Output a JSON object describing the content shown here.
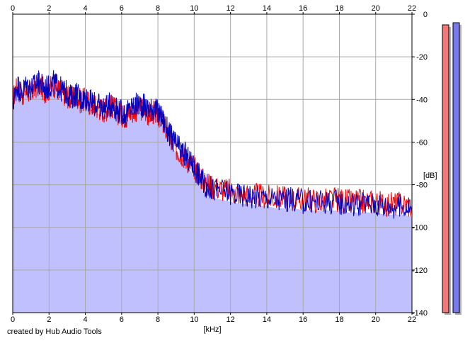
{
  "chart_data": {
    "type": "area",
    "xlabel": "[kHz]",
    "ylabel": "[dB]",
    "xlim": [
      0,
      22
    ],
    "ylim": [
      -140,
      0
    ],
    "x_ticks": [
      "0",
      "2",
      "4",
      "6",
      "8",
      "10",
      "12",
      "14",
      "16",
      "18",
      "20",
      "22"
    ],
    "y_ticks": [
      "0",
      "-20",
      "-40",
      "-60",
      "-80",
      "-100",
      "-120",
      "-140"
    ],
    "grid": true,
    "series": [
      {
        "color": "#ff0000",
        "x": [
          0,
          0.25,
          0.5,
          0.75,
          1,
          1.25,
          1.5,
          1.75,
          2,
          2.25,
          2.5,
          2.75,
          3,
          3.25,
          3.5,
          3.75,
          4,
          4.25,
          4.5,
          4.75,
          5,
          5.25,
          5.5,
          5.75,
          6,
          6.25,
          6.5,
          6.75,
          7,
          7.25,
          7.5,
          7.75,
          8,
          8.25,
          8.5,
          8.75,
          9,
          9.25,
          9.5,
          9.75,
          10,
          10.25,
          10.5,
          10.75,
          11,
          11.5,
          12,
          12.5,
          13,
          13.5,
          14,
          14.5,
          15,
          15.5,
          16,
          16.5,
          17,
          17.5,
          18,
          18.5,
          19,
          19.5,
          20,
          20.5,
          21,
          21.5,
          22
        ],
        "values": [
          -40,
          -34,
          -38,
          -35,
          -37,
          -34,
          -33,
          -36,
          -35,
          -33,
          -35,
          -37,
          -38,
          -40,
          -38,
          -41,
          -40,
          -42,
          -43,
          -44,
          -45,
          -44,
          -43,
          -46,
          -47,
          -48,
          -46,
          -45,
          -44,
          -45,
          -47,
          -46,
          -47,
          -50,
          -55,
          -60,
          -63,
          -65,
          -67,
          -70,
          -72,
          -75,
          -78,
          -80,
          -81,
          -82,
          -83,
          -84,
          -85,
          -85,
          -86,
          -86,
          -86,
          -87,
          -87,
          -87,
          -88,
          -87,
          -87,
          -88,
          -88,
          -88,
          -88,
          -89,
          -89,
          -89,
          -90
        ]
      },
      {
        "color": "#0000c0",
        "x": [
          0,
          0.25,
          0.5,
          0.75,
          1,
          1.25,
          1.5,
          1.75,
          2,
          2.25,
          2.5,
          2.75,
          3,
          3.25,
          3.5,
          3.75,
          4,
          4.25,
          4.5,
          4.75,
          5,
          5.25,
          5.5,
          5.75,
          6,
          6.25,
          6.5,
          6.75,
          7,
          7.25,
          7.5,
          7.75,
          8,
          8.25,
          8.5,
          8.75,
          9,
          9.25,
          9.5,
          9.75,
          10,
          10.25,
          10.5,
          10.75,
          11,
          11.5,
          12,
          12.5,
          13,
          13.5,
          14,
          14.5,
          15,
          15.5,
          16,
          16.5,
          17,
          17.5,
          18,
          18.5,
          19,
          19.5,
          20,
          20.5,
          21,
          21.5,
          22
        ],
        "values": [
          -42,
          -33,
          -37,
          -33,
          -35,
          -33,
          -32,
          -35,
          -34,
          -32,
          -34,
          -36,
          -37,
          -39,
          -37,
          -40,
          -39,
          -41,
          -42,
          -43,
          -44,
          -43,
          -42,
          -45,
          -46,
          -47,
          -44,
          -43,
          -42,
          -43,
          -45,
          -44,
          -46,
          -49,
          -54,
          -58,
          -61,
          -64,
          -66,
          -69,
          -72,
          -75,
          -79,
          -81,
          -82,
          -83,
          -84,
          -85,
          -85,
          -86,
          -86,
          -87,
          -87,
          -87,
          -88,
          -88,
          -88,
          -88,
          -88,
          -89,
          -89,
          -89,
          -89,
          -90,
          -90,
          -90,
          -91
        ]
      }
    ],
    "level_meters": [
      {
        "color": "#f07878",
        "value": -5
      },
      {
        "color": "#7878f0",
        "value": -4
      }
    ]
  },
  "credit": "created by Hub Audio Tools"
}
